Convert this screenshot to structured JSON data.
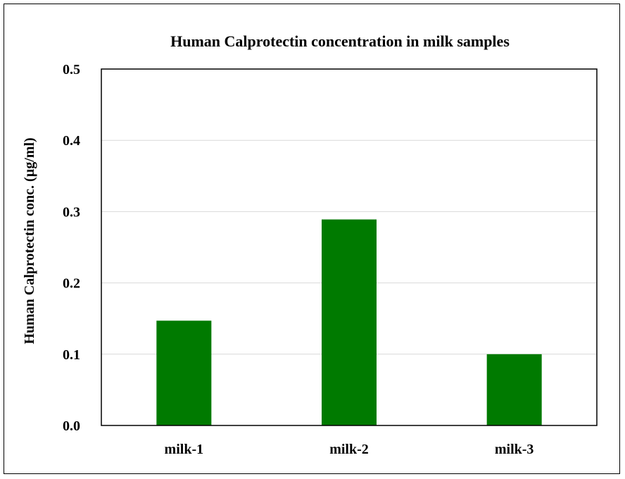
{
  "chart_data": {
    "type": "bar",
    "title": "Human  Calprotectin concentration in milk samples",
    "xlabel": "",
    "ylabel": "Human  Calprotectin  conc. (µg/ml)",
    "categories": [
      "milk-1",
      "milk-2",
      "milk-3"
    ],
    "values": [
      0.147,
      0.289,
      0.1
    ],
    "ylim": [
      0,
      0.5
    ],
    "yticks": [
      "0.0",
      "0.1",
      "0.2",
      "0.3",
      "0.4",
      "0.5"
    ],
    "ytick_values": [
      0,
      0.1,
      0.2,
      0.3,
      0.4,
      0.5
    ],
    "grid": true,
    "legend": "none",
    "colors": {
      "bar": "#007A00",
      "grid": "#D9D9D9",
      "axis": "#000000",
      "frame": "#000000"
    }
  }
}
